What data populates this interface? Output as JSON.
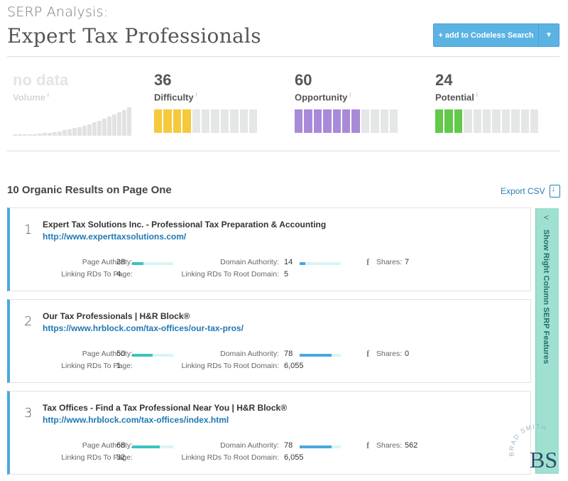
{
  "header": {
    "subtitle": "SERP Analysis:",
    "title": "Expert Tax Professionals",
    "add_button": "+ add to Codeless Search",
    "dropdown_icon": "caret-down"
  },
  "metrics": {
    "volume": {
      "value": "no data",
      "label": "Volume",
      "info": "i"
    },
    "difficulty": {
      "value": "36",
      "label": "Difficulty",
      "info": "i",
      "filled_segments": 4,
      "total_segments": 11,
      "color": "#f5c93b"
    },
    "opportunity": {
      "value": "60",
      "label": "Opportunity",
      "info": "i",
      "filled_segments": 7,
      "total_segments": 11,
      "color": "#a98ad9"
    },
    "potential": {
      "value": "24",
      "label": "Potential",
      "info": "i",
      "filled_segments": 3,
      "total_segments": 11,
      "color": "#62c94a"
    }
  },
  "results_section": {
    "title": "10 Organic Results on Page One",
    "export_label": "Export CSV"
  },
  "labels": {
    "page_authority": "Page Authority:",
    "domain_authority": "Domain Authority:",
    "shares": "Shares:",
    "linking_page": "Linking RDs To Page:",
    "linking_root": "Linking RDs To Root Domain:",
    "facebook": "f"
  },
  "results": [
    {
      "rank": "1",
      "title": "Expert Tax Solutions Inc. - Professional Tax Preparation & Accounting",
      "url": "http://www.experttaxsolutions.com/",
      "page_authority": "28",
      "domain_authority": "14",
      "shares": "7",
      "linking_rds_page": "4",
      "linking_rds_root": "5"
    },
    {
      "rank": "2",
      "title": "Our Tax Professionals | H&R Block®",
      "url": "https://www.hrblock.com/tax-offices/our-tax-pros/",
      "page_authority": "50",
      "domain_authority": "78",
      "shares": "0",
      "linking_rds_page": "1",
      "linking_rds_root": "6,055"
    },
    {
      "rank": "3",
      "title": "Tax Offices - Find a Tax Professional Near You | H&R Block®",
      "url": "http://www.hrblock.com/tax-offices/index.html",
      "page_authority": "68",
      "domain_authority": "78",
      "shares": "562",
      "linking_rds_page": "32",
      "linking_rds_root": "6,055"
    }
  ],
  "side_tab": {
    "label": "Show Right Column SERP Features",
    "icon": "chevron-left"
  },
  "watermark": {
    "text": "BRAD SMITH",
    "monogram": "BS"
  }
}
